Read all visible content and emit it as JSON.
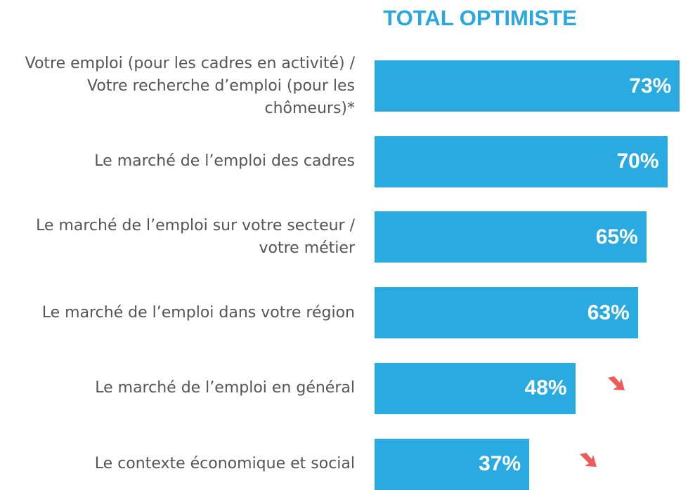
{
  "chart_data": {
    "type": "bar",
    "orientation": "horizontal",
    "title": "TOTAL OPTIMISTE",
    "categories": [
      "Votre emploi  (pour les cadres en activité) / Votre recherche d’emploi (pour les chômeurs)*",
      "Le marché de l’emploi des cadres",
      "Le marché de l’emploi sur votre secteur / votre métier",
      "Le marché de l’emploi dans votre région",
      "Le marché de l’emploi en général",
      "Le contexte économique et social"
    ],
    "values": [
      73,
      70,
      65,
      63,
      48,
      37
    ],
    "value_labels": [
      "73%",
      "70%",
      "65%",
      "63%",
      "48%",
      "37%"
    ],
    "color": "#29abe2"
  }
}
